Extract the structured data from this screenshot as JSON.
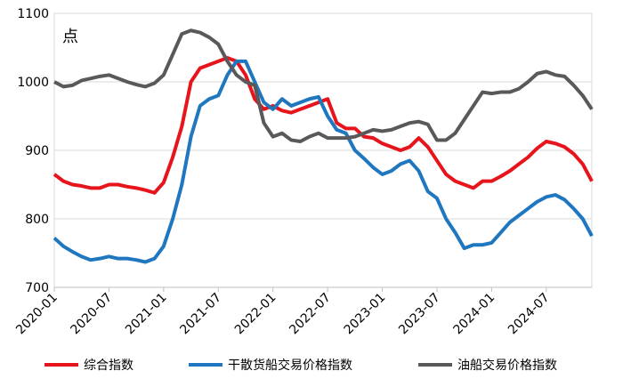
{
  "chart_data": {
    "type": "line",
    "unit_label": "点",
    "categories": [
      "2020-01",
      null,
      null,
      null,
      null,
      null,
      "2020-07",
      null,
      null,
      null,
      null,
      null,
      "2021-01",
      null,
      null,
      null,
      null,
      null,
      "2021-07",
      null,
      null,
      null,
      null,
      null,
      "2022-01",
      null,
      null,
      null,
      null,
      null,
      "2022-07",
      null,
      null,
      null,
      null,
      null,
      "2023-01",
      null,
      null,
      null,
      null,
      null,
      "2023-07",
      null,
      null,
      null,
      null,
      null,
      "2024-01",
      null,
      null,
      null,
      null,
      null,
      "2024-07",
      null,
      null,
      null,
      null,
      null
    ],
    "series": [
      {
        "name": "综合指数",
        "color": "#e8141c",
        "values": [
          865,
          855,
          850,
          848,
          845,
          845,
          850,
          850,
          847,
          845,
          842,
          838,
          853,
          890,
          935,
          1000,
          1020,
          1025,
          1030,
          1035,
          1030,
          1010,
          975,
          960,
          965,
          958,
          955,
          960,
          965,
          970,
          975,
          940,
          932,
          932,
          920,
          918,
          910,
          905,
          900,
          905,
          918,
          905,
          885,
          865,
          855,
          850,
          845,
          855,
          855,
          862,
          870,
          880,
          890,
          903,
          913,
          910,
          905,
          895,
          880,
          855
        ]
      },
      {
        "name": "干散货船交易价格指数",
        "color": "#1f77c0",
        "values": [
          772,
          760,
          752,
          745,
          740,
          742,
          745,
          742,
          742,
          740,
          737,
          742,
          760,
          800,
          850,
          920,
          965,
          975,
          980,
          1010,
          1030,
          1030,
          1000,
          970,
          960,
          975,
          965,
          970,
          975,
          978,
          950,
          930,
          925,
          900,
          888,
          875,
          865,
          870,
          880,
          885,
          870,
          840,
          830,
          800,
          780,
          757,
          762,
          762,
          765,
          780,
          795,
          805,
          815,
          825,
          832,
          835,
          828,
          815,
          800,
          775
        ]
      },
      {
        "name": "油船交易价格指数",
        "color": "#595959",
        "values": [
          1000,
          993,
          995,
          1002,
          1005,
          1008,
          1010,
          1005,
          1000,
          996,
          993,
          998,
          1010,
          1040,
          1070,
          1075,
          1072,
          1065,
          1055,
          1030,
          1010,
          1000,
          995,
          940,
          920,
          925,
          915,
          913,
          920,
          925,
          918,
          918,
          918,
          920,
          925,
          930,
          928,
          930,
          935,
          940,
          942,
          938,
          915,
          915,
          925,
          945,
          965,
          985,
          983,
          985,
          985,
          990,
          1000,
          1012,
          1015,
          1010,
          1008,
          995,
          980,
          960
        ]
      }
    ],
    "ylim": [
      700,
      1100
    ],
    "yticks": [
      700,
      800,
      900,
      1000,
      1100
    ],
    "grid": true
  }
}
